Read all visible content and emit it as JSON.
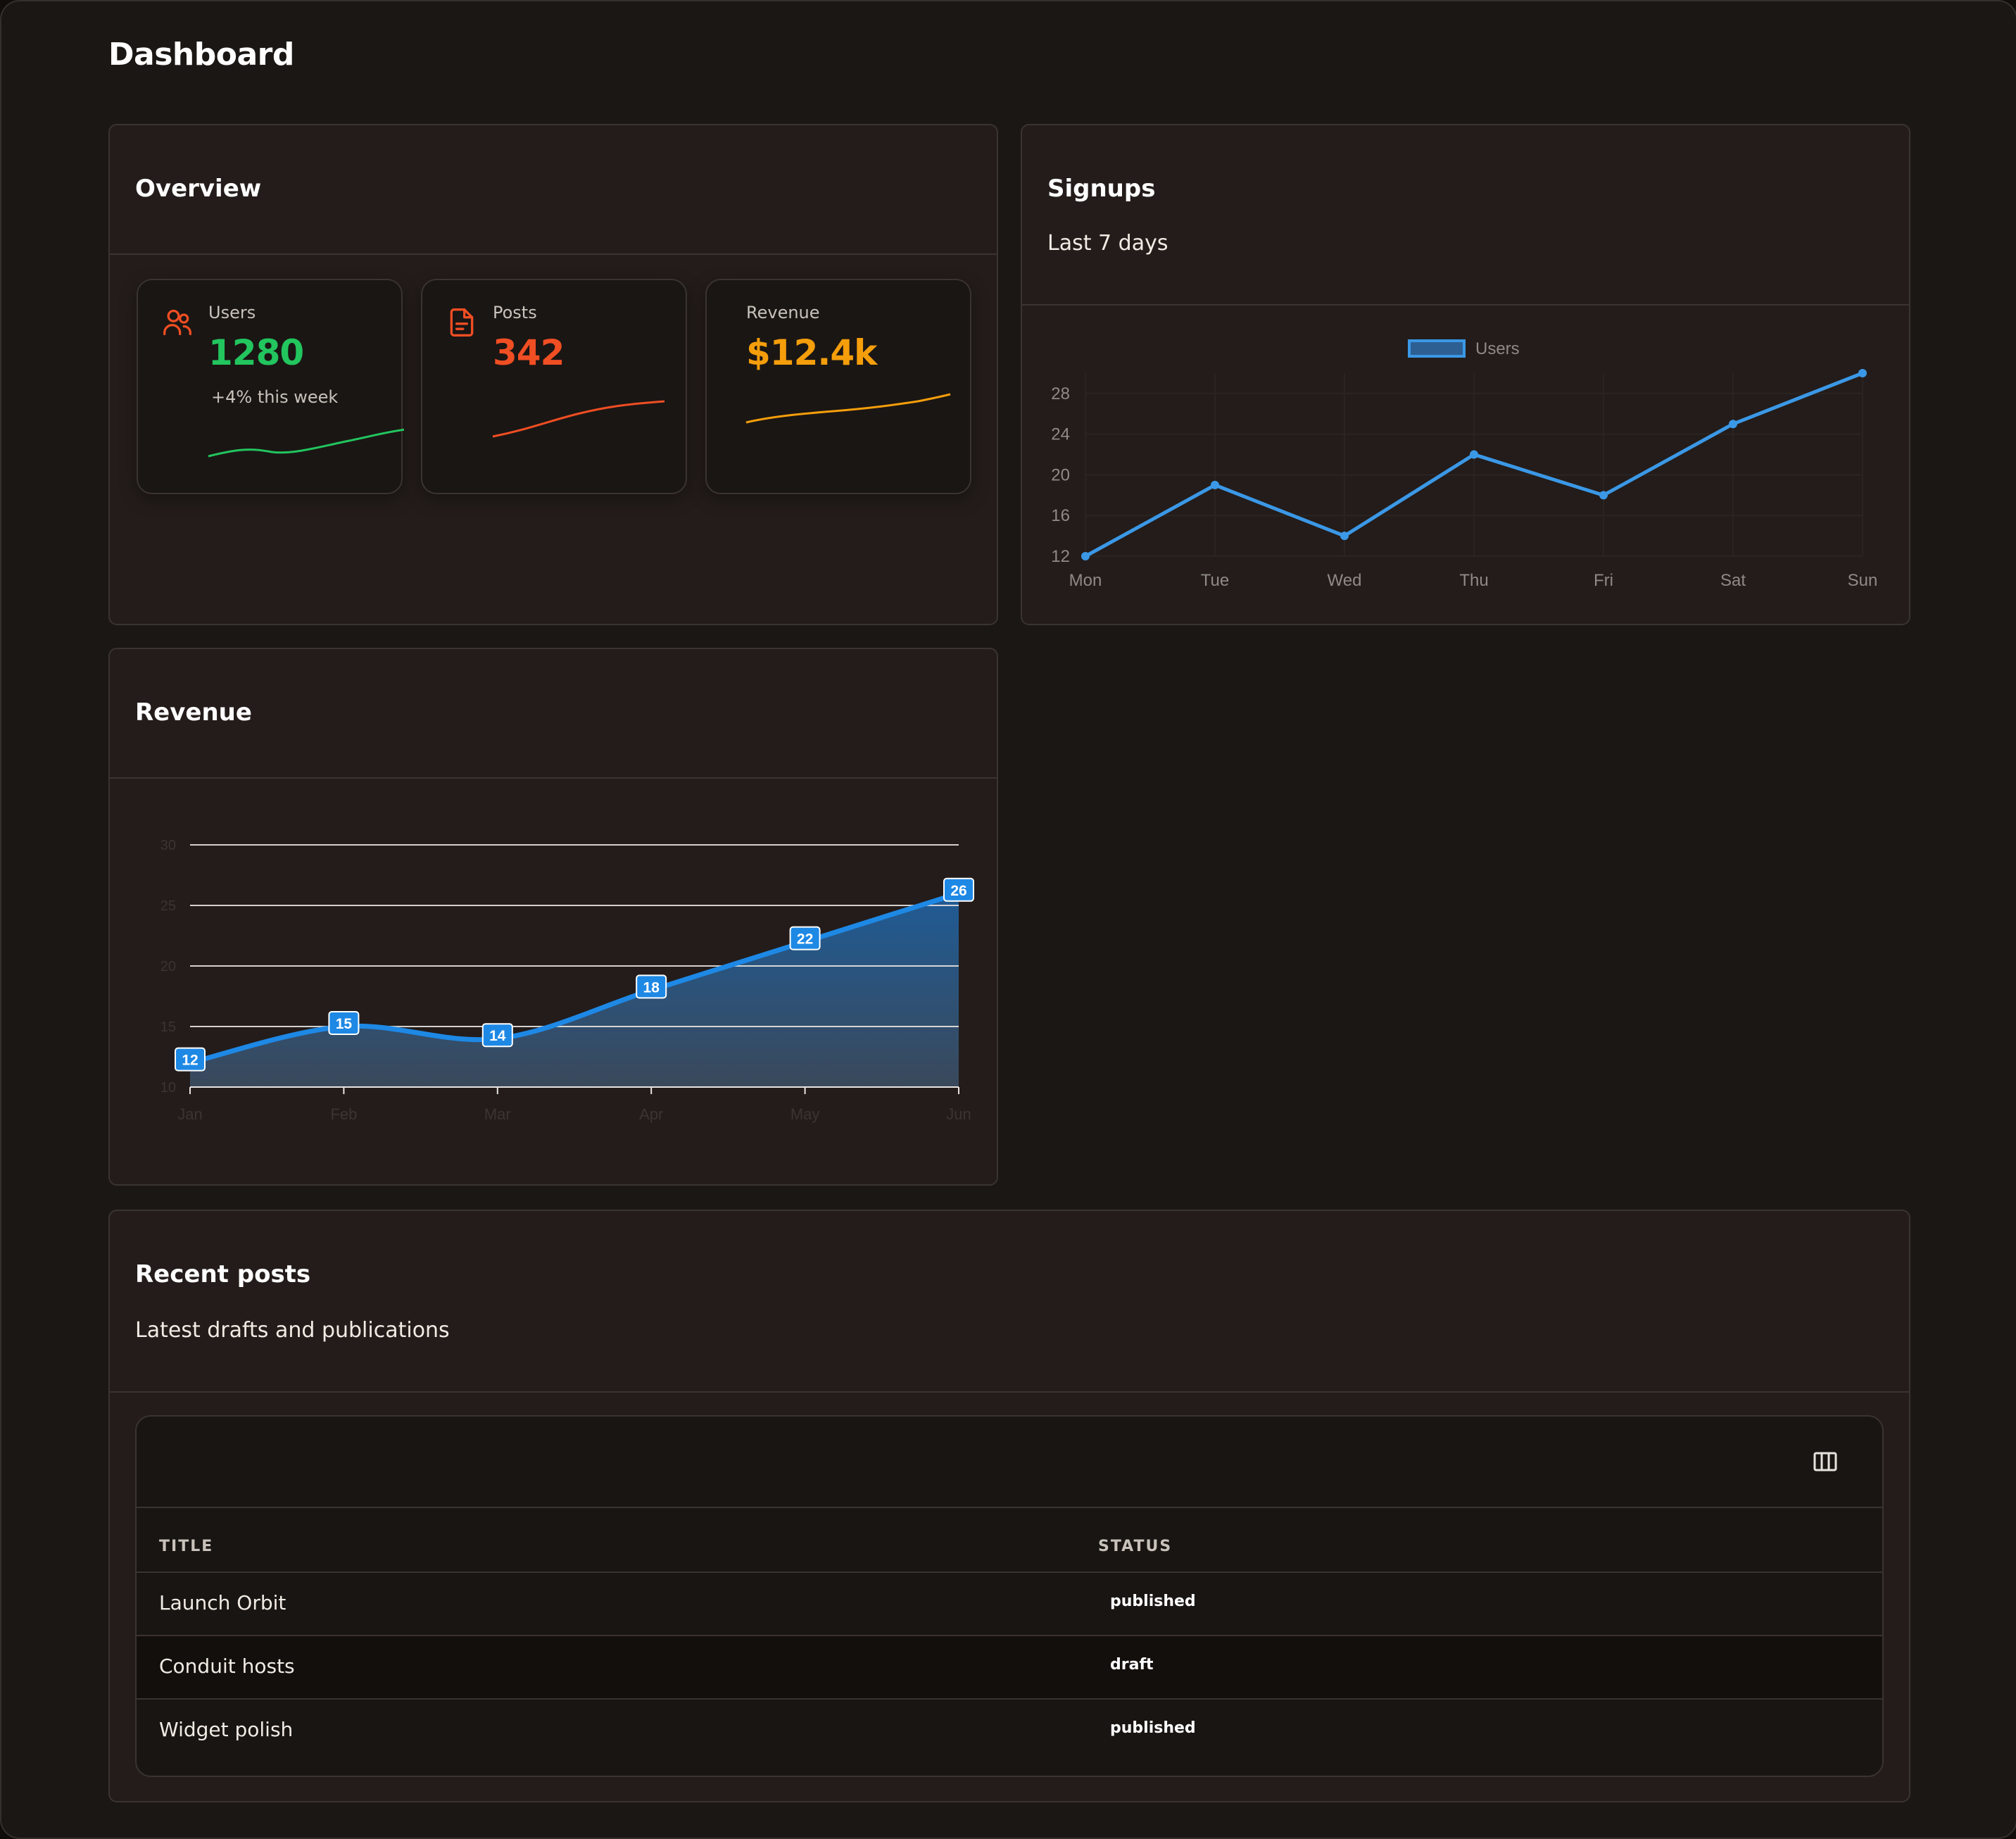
{
  "page": {
    "title": "Dashboard"
  },
  "overview": {
    "title": "Overview",
    "stats": [
      {
        "label": "Users",
        "value": "1280",
        "note": "+4% this week",
        "icon": "users-icon",
        "color": "#22c55e"
      },
      {
        "label": "Posts",
        "value": "342",
        "icon": "document-icon",
        "color": "#f04e23"
      },
      {
        "label": "Revenue",
        "value": "$12.4k",
        "color": "#f59e0b"
      }
    ]
  },
  "signups": {
    "title": "Signups",
    "subtitle": "Last 7 days",
    "chart_data": {
      "type": "line",
      "categories": [
        "Mon",
        "Tue",
        "Wed",
        "Thu",
        "Fri",
        "Sat",
        "Sun"
      ],
      "series": [
        {
          "name": "Users",
          "values": [
            12,
            19,
            14,
            22,
            18,
            25,
            30
          ],
          "color": "#3b98e6"
        }
      ],
      "ylim": [
        12,
        30
      ],
      "yticks": [
        12,
        16,
        20,
        24,
        28
      ],
      "legend": "top",
      "grid": true
    }
  },
  "revenue": {
    "title": "Revenue",
    "chart_data": {
      "type": "area",
      "categories": [
        "Jan",
        "Feb",
        "Mar",
        "Apr",
        "May",
        "Jun"
      ],
      "series": [
        {
          "values": [
            12,
            15,
            14,
            18,
            22,
            26
          ],
          "color": "#1e88e5"
        }
      ],
      "ylim": [
        10,
        30
      ],
      "yticks": [
        10,
        15,
        20,
        25,
        30
      ],
      "data_labels": true,
      "grid": true
    }
  },
  "recent_posts": {
    "title": "Recent posts",
    "subtitle": "Latest drafts and publications",
    "columns_icon": "columns-icon",
    "headers": [
      "TITLE",
      "STATUS"
    ],
    "rows": [
      {
        "title": "Launch Orbit",
        "status": "published"
      },
      {
        "title": "Conduit hosts",
        "status": "draft"
      },
      {
        "title": "Widget polish",
        "status": "published"
      }
    ]
  }
}
